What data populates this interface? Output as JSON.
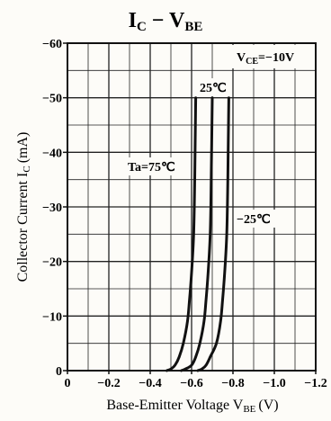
{
  "chart_data": {
    "type": "line",
    "title": {
      "main": "I",
      "sub1": "C",
      "mid": " − V",
      "sub2": "BE"
    },
    "xlabel": {
      "main": "Base-Emitter Voltage  V",
      "sub": "BE",
      "unit": "(V)"
    },
    "ylabel": {
      "main": "Collector Current  I",
      "sub": "C",
      "unit": "(mA)"
    },
    "xlim": [
      0,
      -1.2
    ],
    "ylim": [
      0,
      -60
    ],
    "x_ticks": [
      0,
      -0.2,
      -0.4,
      -0.6,
      -0.8,
      -1.0,
      -1.2
    ],
    "x_tick_labels": [
      "0",
      "−0.2",
      "−0.4",
      "−0.6",
      "−0.8",
      "−1.0",
      "−1.2"
    ],
    "y_ticks": [
      0,
      -10,
      -20,
      -30,
      -40,
      -50,
      -60
    ],
    "y_tick_labels": [
      "0",
      "−10",
      "−20",
      "−30",
      "−40",
      "−50",
      "−60"
    ],
    "grid": true,
    "condition": {
      "main": "V",
      "sub": "CE",
      "value": "=−10V"
    },
    "series": [
      {
        "name": "Ta=75℃",
        "points": [
          [
            -0.48,
            0
          ],
          [
            -0.5,
            -0.3
          ],
          [
            -0.52,
            -1
          ],
          [
            -0.54,
            -2.5
          ],
          [
            -0.56,
            -5
          ],
          [
            -0.58,
            -9
          ],
          [
            -0.59,
            -13
          ],
          [
            -0.6,
            -18
          ],
          [
            -0.61,
            -25
          ],
          [
            -0.615,
            -35
          ],
          [
            -0.62,
            -50
          ]
        ]
      },
      {
        "name": "25℃",
        "points": [
          [
            -0.55,
            0
          ],
          [
            -0.57,
            -0.3
          ],
          [
            -0.6,
            -1
          ],
          [
            -0.62,
            -2.5
          ],
          [
            -0.64,
            -5
          ],
          [
            -0.66,
            -9
          ],
          [
            -0.67,
            -13
          ],
          [
            -0.68,
            -18
          ],
          [
            -0.69,
            -25
          ],
          [
            -0.695,
            -35
          ],
          [
            -0.7,
            -50
          ]
        ]
      },
      {
        "name": "−25℃",
        "points": [
          [
            -0.63,
            0
          ],
          [
            -0.65,
            -0.3
          ],
          [
            -0.67,
            -1
          ],
          [
            -0.69,
            -2.5
          ],
          [
            -0.72,
            -5
          ],
          [
            -0.74,
            -9
          ],
          [
            -0.75,
            -13
          ],
          [
            -0.76,
            -18
          ],
          [
            -0.77,
            -25
          ],
          [
            -0.775,
            -35
          ],
          [
            -0.78,
            -50
          ]
        ]
      }
    ],
    "annotations": {
      "ta": "Ta=75℃",
      "t25": "25℃",
      "tm25": "−25℃"
    },
    "colors": {
      "line": "#111111",
      "grid": "#222222",
      "background": "#fdfcf8"
    }
  }
}
